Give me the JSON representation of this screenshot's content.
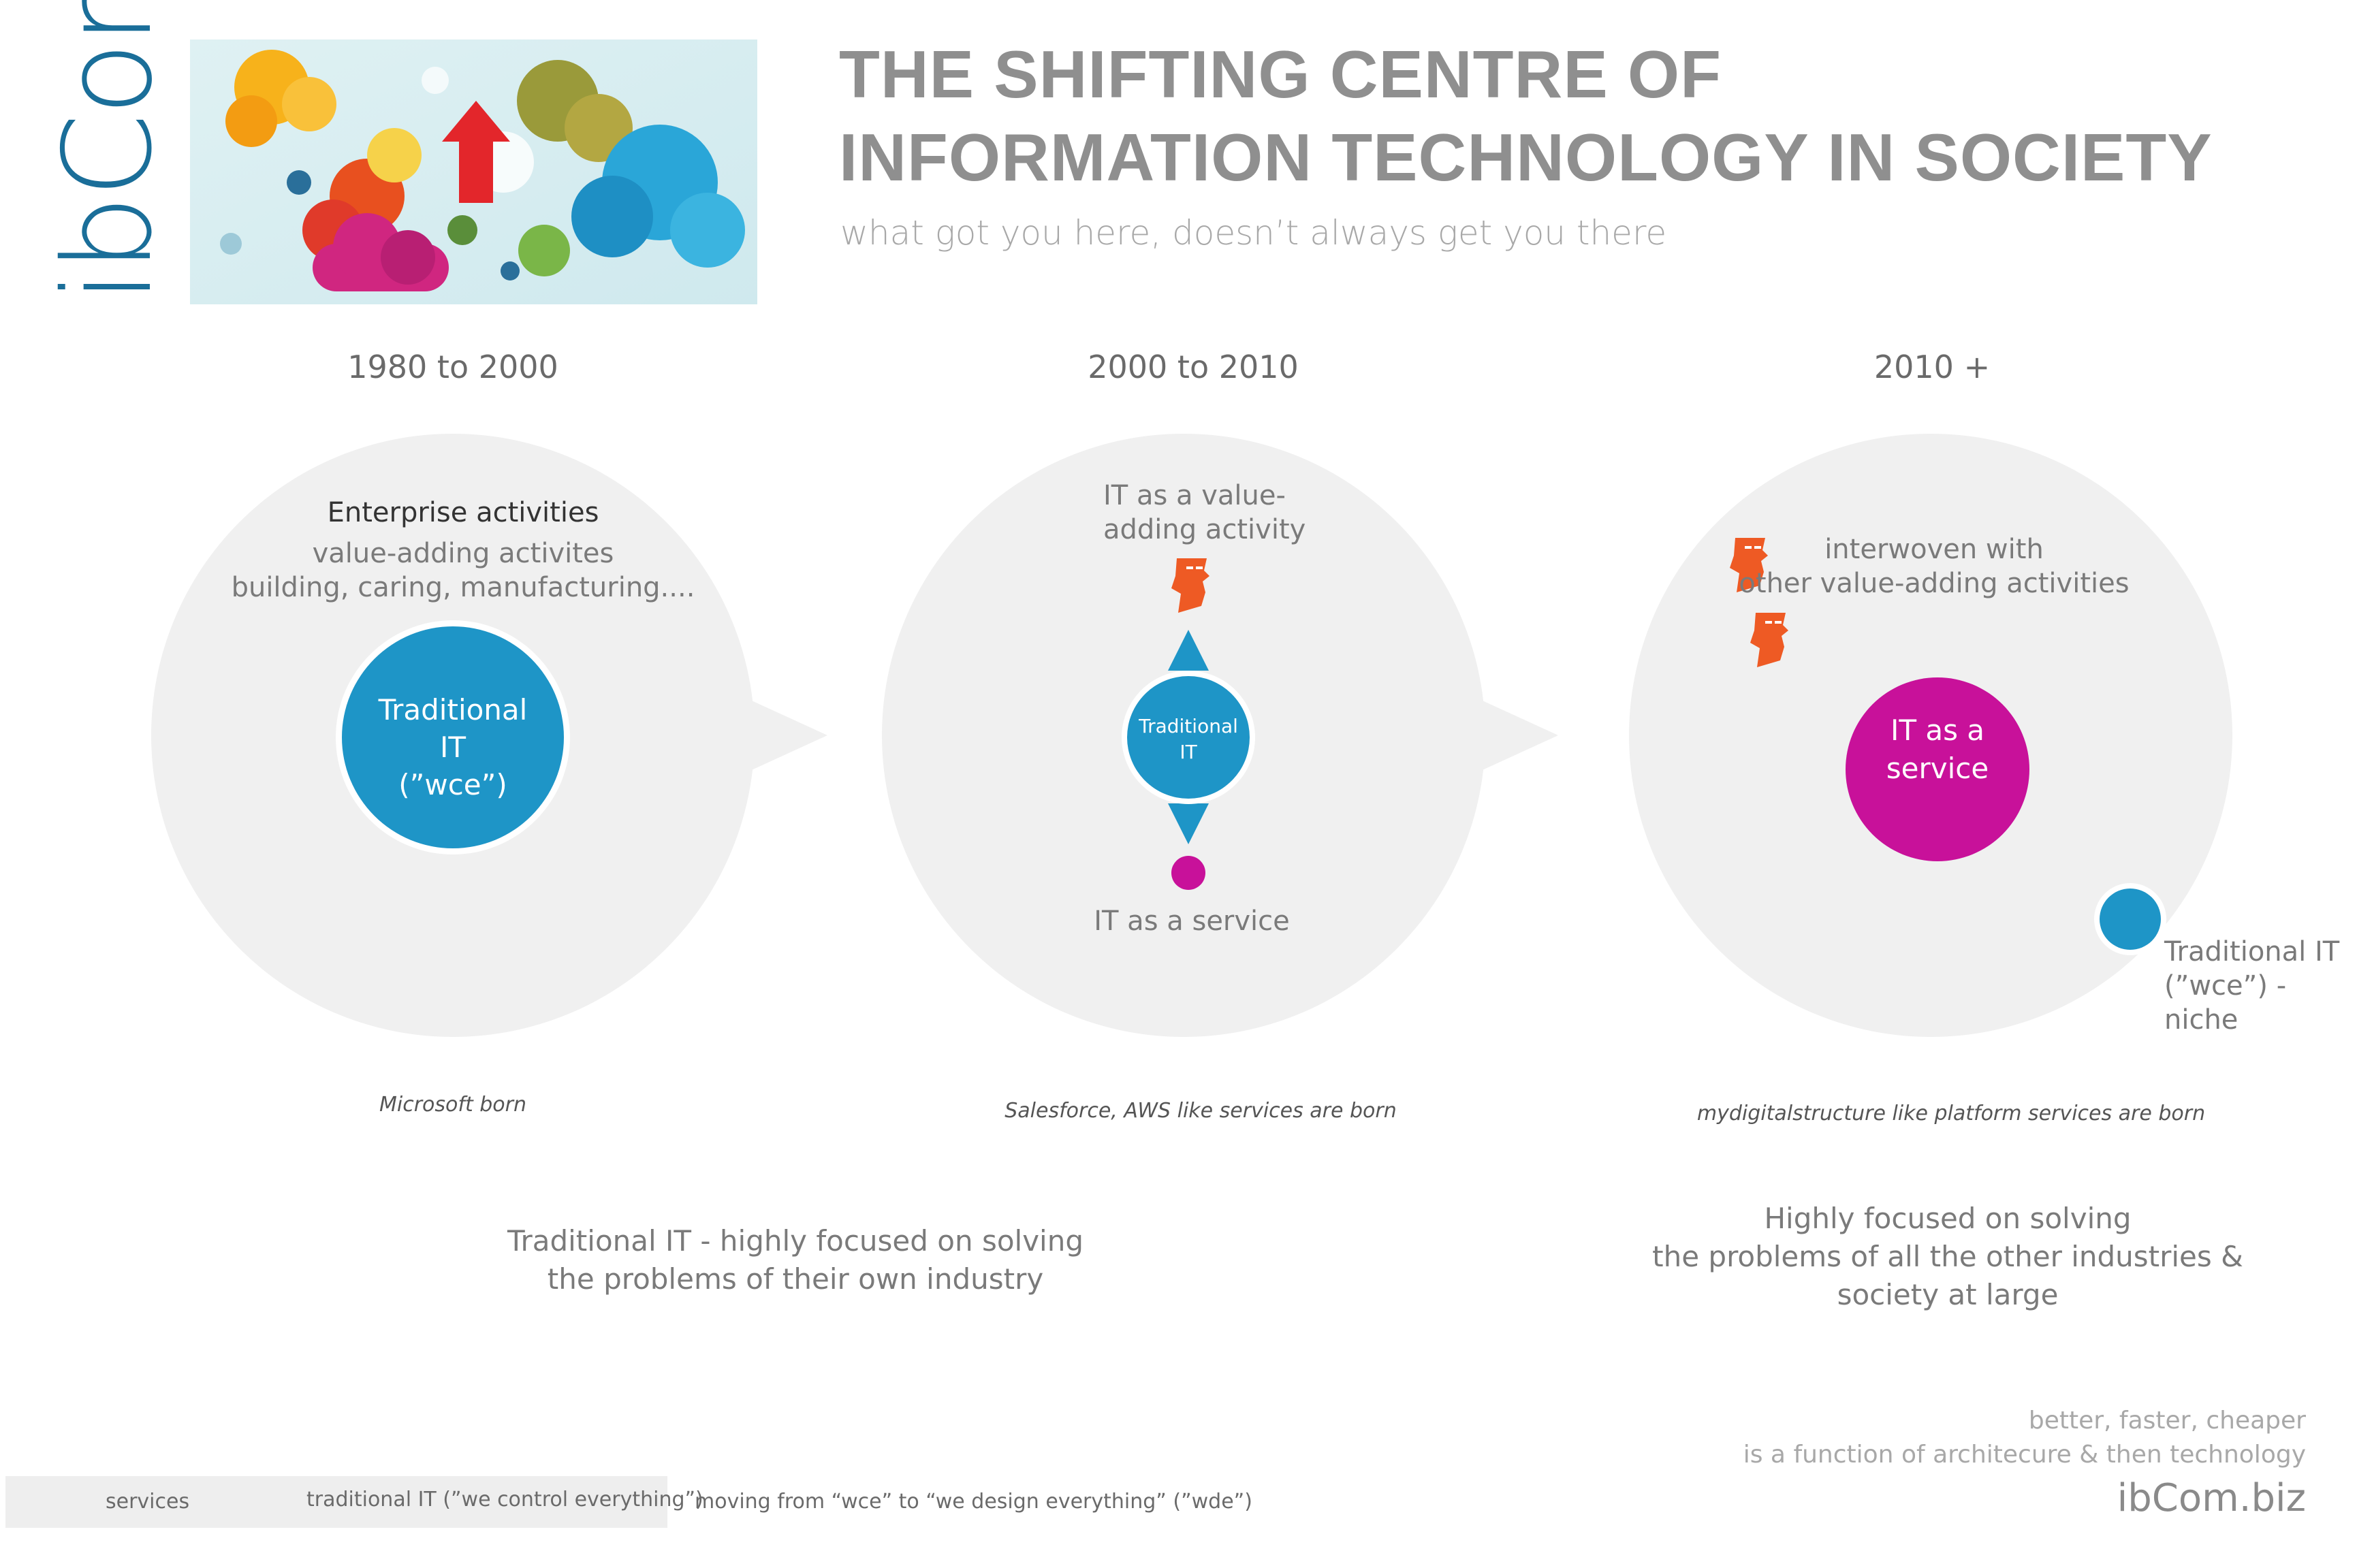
{
  "logo": {
    "text": "ibCom"
  },
  "header": {
    "title_line1": "THE SHIFTING CENTRE OF",
    "title_line2": "INFORMATION TECHNOLOGY IN SOCIETY",
    "subtitle": "what got you here, doesn’t always get you there"
  },
  "periods": [
    {
      "label": "1980 to 2000",
      "heading": "Enterprise activities",
      "text_line1": "value-adding activites",
      "text_line2": "building, caring, manufacturing....",
      "inner_line1": "Traditional",
      "inner_line2": "IT",
      "inner_line3": "(”wce”)",
      "event": "Microsoft born"
    },
    {
      "label": "2000 to 2010",
      "top_line1": "IT as a value-",
      "top_line2": "adding activity",
      "inner_line1": "Traditional",
      "inner_line2": "IT",
      "bottom_label": "IT as a service",
      "event": "Salesforce, AWS like services are born"
    },
    {
      "label": "2010 +",
      "top_line1": "interwoven with",
      "top_line2": "other value-adding activities",
      "inner_line1": "IT as a",
      "inner_line2": "service",
      "niche_line1": "Traditional IT",
      "niche_line2": "(”wce”) -",
      "niche_line3": "niche",
      "event": "mydigitalstructure like platform services are born"
    }
  ],
  "bottom": {
    "left_line1": "Traditional IT - highly focused on solving",
    "left_line2": "the problems of their own industry",
    "right_line1": "Highly focused on solving",
    "right_line2": "the problems of all the other industries &",
    "right_line3": "society at large"
  },
  "legend": {
    "services_label": "services",
    "traditional_label": "traditional IT (”we control everything”)",
    "moving_label": "moving from “wce” to “we design everything” (”wde”)"
  },
  "tagline": {
    "line1": "better, faster, cheaper",
    "line2": "is a function of architecure & then technology"
  },
  "url": "ibCom.biz",
  "colors": {
    "service": "#c8119a",
    "traditional": "#1e95c7",
    "bubble": "#f0f0f0",
    "logo": "#1a6e99",
    "person": "#ee5a24"
  },
  "icons": [
    "person-icon",
    "arrow-up-icon",
    "arrow-down-icon"
  ]
}
